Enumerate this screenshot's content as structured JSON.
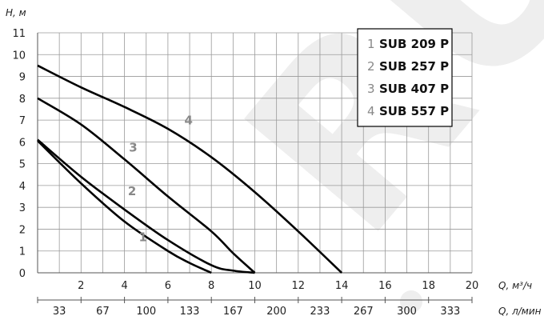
{
  "chart_data": {
    "type": "line",
    "ylabel": "H, м",
    "xlabel": "Q, м³/ч",
    "xlabel2": "Q, л/мин",
    "xlim": [
      0,
      20
    ],
    "ylim": [
      0,
      11
    ],
    "grid": true,
    "legend_position": "top-right",
    "y_ticks": [
      "0",
      "1",
      "2",
      "3",
      "4",
      "5",
      "6",
      "7",
      "8",
      "9",
      "10",
      "11"
    ],
    "x_ticks": [
      "2",
      "4",
      "6",
      "8",
      "10",
      "12",
      "14",
      "16",
      "18",
      "20"
    ],
    "x2_ticks": [
      "33",
      "67",
      "100",
      "133",
      "167",
      "200",
      "233",
      "267",
      "300",
      "333"
    ],
    "series": [
      {
        "name": "SUB 209 P",
        "num": "1",
        "color": "#000000",
        "x": [
          0,
          2,
          4,
          6,
          7,
          8
        ],
        "y": [
          6.05,
          4.1,
          2.35,
          1.0,
          0.45,
          0
        ]
      },
      {
        "name": "SUB 257 P",
        "num": "2",
        "color": "#000000",
        "x": [
          0,
          2,
          4,
          6,
          8,
          9,
          10
        ],
        "y": [
          6.1,
          4.4,
          2.9,
          1.5,
          0.35,
          0.1,
          0
        ]
      },
      {
        "name": "SUB 407 P",
        "num": "3",
        "color": "#000000",
        "x": [
          0,
          2,
          4,
          6,
          8,
          9,
          10
        ],
        "y": [
          8.0,
          6.8,
          5.2,
          3.5,
          1.9,
          0.9,
          0
        ]
      },
      {
        "name": "SUB 557 P",
        "num": "4",
        "color": "#000000",
        "x": [
          0,
          2,
          4,
          6,
          8,
          10,
          12,
          14
        ],
        "y": [
          9.5,
          8.5,
          7.6,
          6.6,
          5.3,
          3.7,
          1.9,
          0
        ]
      }
    ],
    "curve_labels": [
      {
        "text": "1",
        "x": 4.85,
        "y": 1.45
      },
      {
        "text": "2",
        "x": 4.35,
        "y": 3.55
      },
      {
        "text": "3",
        "x": 4.4,
        "y": 5.55
      },
      {
        "text": "4",
        "x": 6.95,
        "y": 6.8
      }
    ],
    "watermark": "RU"
  }
}
